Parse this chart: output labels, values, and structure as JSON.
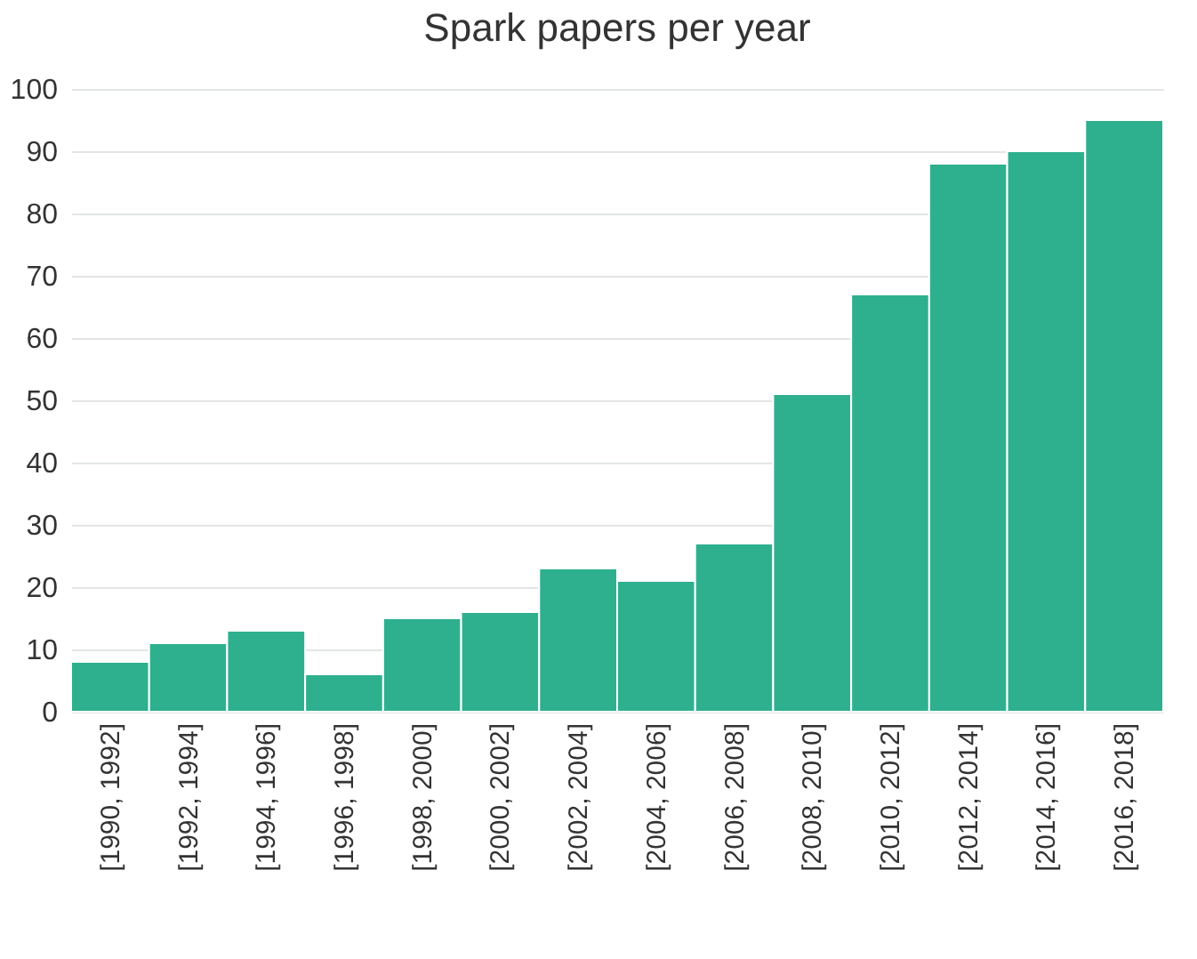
{
  "chart_data": {
    "type": "bar",
    "title": "Spark papers per year",
    "categories": [
      "[1990, 1992]",
      "[1992, 1994]",
      "[1994, 1996]",
      "[1996, 1998]",
      "[1998, 2000]",
      "[2000, 2002]",
      "[2002, 2004]",
      "[2004, 2006]",
      "[2006, 2008]",
      "[2008, 2010]",
      "[2010, 2012]",
      "[2012, 2014]",
      "[2014, 2016]",
      "[2016, 2018]"
    ],
    "values": [
      8,
      11,
      13,
      6,
      15,
      16,
      23,
      21,
      27,
      51,
      67,
      88,
      90,
      95
    ],
    "color": "#2eb08f",
    "ylim": [
      0,
      100
    ],
    "yticks": [
      0,
      10,
      20,
      30,
      40,
      50,
      60,
      70,
      80,
      90,
      100
    ],
    "grid": "y"
  }
}
